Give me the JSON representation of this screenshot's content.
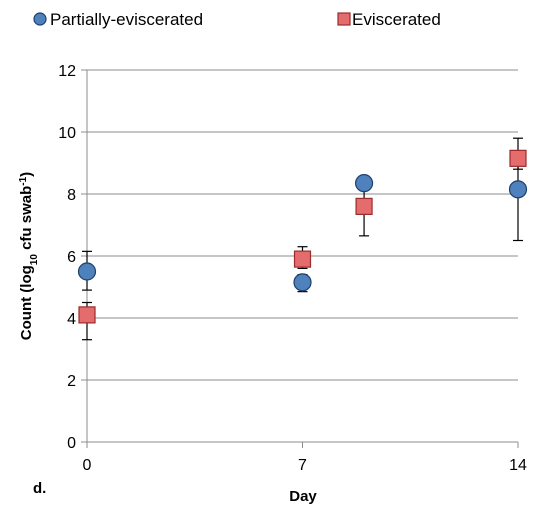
{
  "panel_label": "d.",
  "colors": {
    "partial_fill": "#4F81BD",
    "partial_fill_light": "#9DC3E6",
    "eviscerated_fill": "#E46C6C",
    "eviscerated_stroke": "#9B2C2C",
    "gridline": "#8C8C8C"
  },
  "chart_data": {
    "type": "scatter",
    "title": "",
    "xlabel": "Day",
    "ylabel_main": "Count (log",
    "ylabel_sub": "10",
    "ylabel_mid": " cfu swab",
    "ylabel_sup": "-1",
    "ylabel_end": ")",
    "xlim": [
      0,
      14
    ],
    "ylim": [
      0,
      12
    ],
    "xticks": [
      0,
      7,
      14
    ],
    "yticks": [
      0,
      2,
      4,
      6,
      8,
      10,
      12
    ],
    "grid": "horizontal",
    "legend_position": "top",
    "series": [
      {
        "name": "Partially-eviscerated",
        "marker": "circle",
        "points": [
          {
            "x": 0,
            "y": 5.5,
            "err_low": 4.9,
            "err_high": 6.15
          },
          {
            "x": 7,
            "y": 5.15,
            "err_low": 4.85,
            "err_high": 5.4
          },
          {
            "x": 9,
            "y": 8.35,
            "err_low": 8.15,
            "err_high": 8.55
          },
          {
            "x": 14,
            "y": 8.15,
            "err_low": 6.5,
            "err_high": 9.35
          }
        ]
      },
      {
        "name": "Eviscerated",
        "marker": "square",
        "points": [
          {
            "x": 0,
            "y": 4.1,
            "err_low": 3.3,
            "err_high": 4.5
          },
          {
            "x": 7,
            "y": 5.9,
            "err_low": 5.6,
            "err_high": 6.3
          },
          {
            "x": 9,
            "y": 7.6,
            "err_low": 6.65,
            "err_high": 8.3
          },
          {
            "x": 14,
            "y": 9.15,
            "err_low": 8.8,
            "err_high": 9.8
          }
        ]
      }
    ]
  }
}
